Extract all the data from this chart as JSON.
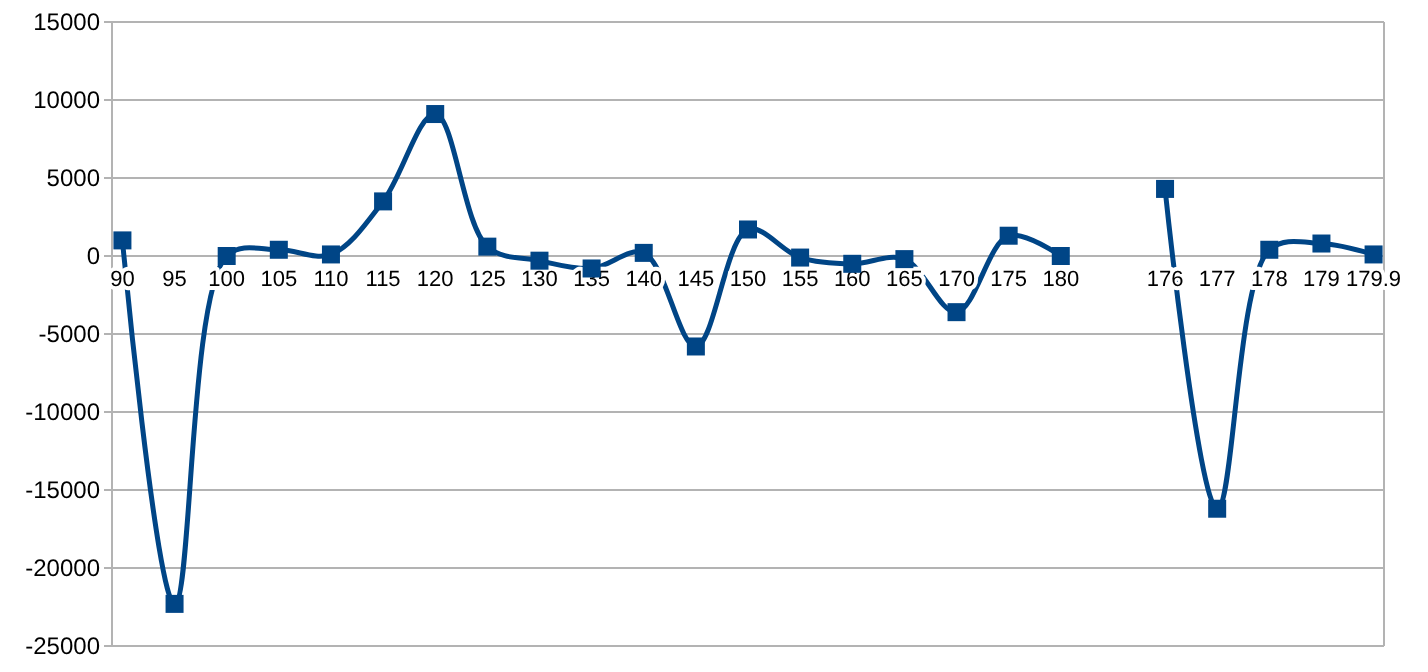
{
  "chart_data": {
    "type": "line",
    "categories": [
      "90",
      "95",
      "100",
      "105",
      "110",
      "115",
      "120",
      "125",
      "130",
      "135",
      "140",
      "145",
      "150",
      "155",
      "160",
      "165",
      "170",
      "175",
      "180",
      null,
      "176",
      "177",
      "178",
      "179",
      "179.9"
    ],
    "series": [
      {
        "color": "#004586",
        "values": [
          1000,
          -22300,
          0,
          400,
          100,
          3500,
          9100,
          600,
          -300,
          -800,
          200,
          -5800,
          1700,
          -100,
          -500,
          -200,
          -3600,
          1300,
          0,
          null,
          4300,
          -16200,
          400,
          800,
          100
        ]
      }
    ],
    "ylim": [
      -25000,
      15000
    ],
    "yticks": [
      -25000,
      -20000,
      -15000,
      -10000,
      -5000,
      0,
      5000,
      10000,
      15000
    ],
    "grid": "y",
    "marker": "square",
    "line_style": "solid"
  }
}
